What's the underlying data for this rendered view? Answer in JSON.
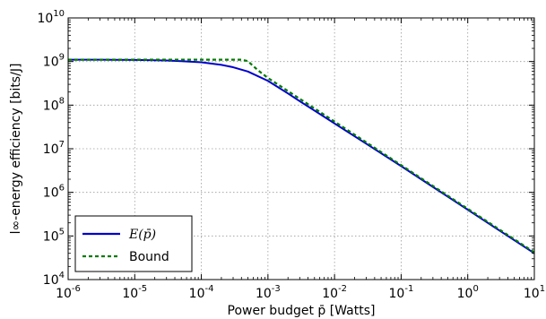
{
  "chart_data": {
    "type": "line",
    "xscale": "log",
    "yscale": "log",
    "xlim": [
      1e-06,
      10
    ],
    "ylim": [
      10000,
      10000000000
    ],
    "xlabel": "Power budget p̄ [Watts]",
    "ylabel": "l∞-energy efficiency [bits/J]",
    "grid": true,
    "legend_position": "lower-left",
    "x_ticks": [
      {
        "value": 1e-06,
        "base": "10",
        "exp": "-6"
      },
      {
        "value": 1e-05,
        "base": "10",
        "exp": "-5"
      },
      {
        "value": 0.0001,
        "base": "10",
        "exp": "-4"
      },
      {
        "value": 0.001,
        "base": "10",
        "exp": "-3"
      },
      {
        "value": 0.01,
        "base": "10",
        "exp": "-2"
      },
      {
        "value": 0.1,
        "base": "10",
        "exp": "-1"
      },
      {
        "value": 1,
        "base": "10",
        "exp": "0"
      },
      {
        "value": 10,
        "base": "10",
        "exp": "1"
      }
    ],
    "y_ticks": [
      {
        "value": 10000,
        "base": "10",
        "exp": "4"
      },
      {
        "value": 100000,
        "base": "10",
        "exp": "5"
      },
      {
        "value": 1000000,
        "base": "10",
        "exp": "6"
      },
      {
        "value": 10000000,
        "base": "10",
        "exp": "7"
      },
      {
        "value": 100000000,
        "base": "10",
        "exp": "8"
      },
      {
        "value": 1000000000,
        "base": "10",
        "exp": "9"
      },
      {
        "value": 10000000000,
        "base": "10",
        "exp": "10"
      }
    ],
    "series": [
      {
        "name": "E(p̄)",
        "color": "#0000cc",
        "style": "solid",
        "x": [
          1e-06,
          3e-06,
          1e-05,
          3e-05,
          5e-05,
          0.0001,
          0.0002,
          0.0003,
          0.0005,
          0.001,
          0.002,
          0.003,
          0.005,
          0.01,
          0.03,
          0.1,
          0.3,
          1,
          3,
          10
        ],
        "y": [
          1100000000,
          1100000000,
          1090000000,
          1060000000,
          1020000000,
          960000000,
          840000000,
          740000000,
          590000000,
          360000000,
          185000000,
          123000000,
          75000000,
          38000000,
          13000000,
          4000000,
          1330000,
          400000,
          133000,
          40000
        ]
      },
      {
        "name": "Bound",
        "color": "#007a00",
        "style": "dashed",
        "x": [
          1e-06,
          1e-05,
          0.0001,
          0.0002,
          0.0003,
          0.0004,
          0.0005,
          0.0007,
          0.001,
          0.002,
          0.003,
          0.005,
          0.01,
          0.03,
          0.1,
          0.3,
          1,
          3,
          10
        ],
        "y": [
          1100000000,
          1100000000,
          1100000000,
          1100000000,
          1100000000,
          1100000000,
          1020000000,
          640000000,
          420000000,
          210000000,
          140000000,
          84000000,
          42000000,
          14000000,
          4200000,
          1400000,
          420000,
          140000,
          42000
        ]
      }
    ]
  },
  "legend": {
    "items": [
      {
        "label": "E(p̄)",
        "color": "#0000cc",
        "style": "solid"
      },
      {
        "label": "Bound",
        "color": "#007a00",
        "style": "dashed"
      }
    ]
  }
}
